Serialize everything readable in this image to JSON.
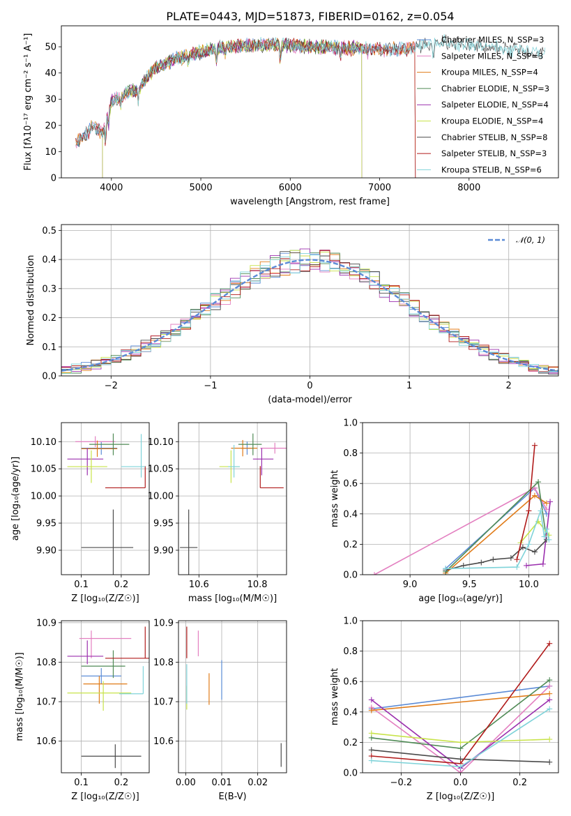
{
  "figure": {
    "title": "PLATE=0443, MJD=51873, FIBERID=0162, z=0.054"
  },
  "colors": {
    "Chabrier MILES": "#5b8bd6",
    "Salpeter MILES": "#e37fc0",
    "Kroupa MILES": "#e07b18",
    "Chabrier ELODIE": "#4f8a55",
    "Salpeter ELODIE": "#9b2fae",
    "Kroupa ELODIE": "#c8e34a",
    "Chabrier STELIB": "#4a4a4a",
    "Salpeter STELIB": "#b01a1a",
    "Kroupa STELIB": "#7fd3d9",
    "normal": "#5b8bd6"
  },
  "chart_data": [
    {
      "id": "spectrum",
      "type": "line",
      "title": "PLATE=0443, MJD=51873, FIBERID=0162, z=0.054",
      "xlabel": "wavelength [Angstrom, rest frame]",
      "ylabel": "Flux [fλ10⁻¹⁷ erg cm⁻² s⁻¹ A⁻¹]",
      "xlim": [
        3440,
        9000
      ],
      "ylim": [
        0,
        58
      ],
      "xticks": [
        "4000",
        "5000",
        "6000",
        "7000",
        "8000"
      ],
      "yticks": [
        "0",
        "10",
        "20",
        "30",
        "40",
        "50"
      ],
      "legend_position": "right",
      "legend": [
        "Chabrier MILES, N_SSP=3",
        "Salpeter MILES, N_SSP=3",
        "Kroupa MILES, N_SSP=4",
        "Chabrier ELODIE, N_SSP=3",
        "Salpeter ELODIE, N_SSP=4",
        "Kroupa ELODIE, N_SSP=4",
        "Chabrier STELIB, N_SSP=8",
        "Salpeter STELIB, N_SSP=3",
        "Kroupa STELIB, N_SSP=6"
      ],
      "continuum": {
        "x": [
          3600,
          3700,
          3800,
          3900,
          3950,
          4000,
          4100,
          4200,
          4300,
          4400,
          4500,
          4700,
          4900,
          5100,
          5300,
          5500,
          5800,
          6000,
          6300,
          6600,
          6900,
          7100,
          7300,
          7500,
          7700,
          8000,
          8300,
          8600,
          8850
        ],
        "y": [
          13,
          16,
          20,
          17,
          24,
          29,
          31,
          33,
          34,
          38,
          42,
          45,
          47,
          49,
          50,
          50.5,
          51,
          50.5,
          50,
          49.5,
          49.5,
          49,
          49,
          51,
          52,
          50.5,
          49.5,
          48.5,
          48
        ]
      },
      "model_range": {
        "Chabrier MILES": [
          3600,
          7400
        ],
        "Salpeter MILES": [
          3600,
          7400
        ],
        "Kroupa MILES": [
          3600,
          7400
        ],
        "Chabrier ELODIE": [
          3900,
          6800
        ],
        "Salpeter ELODIE": [
          3900,
          6800
        ],
        "Kroupa ELODIE": [
          3900,
          6800
        ],
        "Chabrier STELIB": [
          3600,
          8850
        ],
        "Salpeter STELIB": [
          3600,
          7400
        ],
        "Kroupa STELIB": [
          3600,
          8850
        ]
      }
    },
    {
      "id": "residuals",
      "type": "histogram",
      "xlabel": "(data-model)/error",
      "ylabel": "Normed distribution",
      "xlim": [
        -2.5,
        2.5
      ],
      "ylim": [
        0,
        0.52
      ],
      "xticks": [
        "−2",
        "−1",
        "0",
        "1",
        "2"
      ],
      "yticks": [
        "0.0",
        "0.1",
        "0.2",
        "0.3",
        "0.4",
        "0.5"
      ],
      "bins": 50,
      "normal_label": "𝒩(0, 1)",
      "legend_position": "upper right"
    },
    {
      "id": "age-vs-Z",
      "type": "errorbar",
      "xlabel": "Z [log₁₀(Z/Z☉)]",
      "ylabel": "age [log₁₀(age/yr)]",
      "xlim": [
        0.05,
        0.27
      ],
      "ylim": [
        9.855,
        10.135
      ],
      "xticks": [
        "0.1",
        "0.2"
      ],
      "yticks": [
        "9.90",
        "9.95",
        "10.00",
        "10.05",
        "10.10"
      ],
      "points": [
        {
          "model": "Chabrier MILES",
          "x": 0.15,
          "y": 10.088,
          "xerr": [
            0.05,
            0.04
          ],
          "yerr": [
            0.012,
            0.012
          ]
        },
        {
          "model": "Salpeter MILES",
          "x": 0.135,
          "y": 10.1,
          "xerr": [
            0.05,
            0.05
          ],
          "yerr": [
            0.01,
            0.01
          ]
        },
        {
          "model": "Kroupa MILES",
          "x": 0.14,
          "y": 10.087,
          "xerr": [
            0.04,
            0.05
          ],
          "yerr": [
            0.015,
            0.015
          ]
        },
        {
          "model": "Chabrier ELODIE",
          "x": 0.18,
          "y": 10.095,
          "xerr": [
            0.06,
            0.04
          ],
          "yerr": [
            0.02,
            0.02
          ]
        },
        {
          "model": "Salpeter ELODIE",
          "x": 0.115,
          "y": 10.068,
          "xerr": [
            0.05,
            0.04
          ],
          "yerr": [
            0.03,
            0.02
          ]
        },
        {
          "model": "Kroupa ELODIE",
          "x": 0.125,
          "y": 10.054,
          "xerr": [
            0.06,
            0.04
          ],
          "yerr": [
            0.03,
            0.03
          ]
        },
        {
          "model": "Chabrier STELIB",
          "x": 0.18,
          "y": 9.905,
          "xerr": [
            0.08,
            0.05
          ],
          "yerr": [
            0.055,
            0.07
          ]
        },
        {
          "model": "Salpeter STELIB",
          "x": 0.26,
          "y": 10.015,
          "xerr": [
            0.1,
            0.0
          ],
          "yerr": [
            0.0,
            0.04
          ]
        },
        {
          "model": "Kroupa STELIB",
          "x": 0.25,
          "y": 10.054,
          "xerr": [
            0.05,
            0.01
          ],
          "yerr": [
            0.02,
            0.06
          ]
        }
      ]
    },
    {
      "id": "age-vs-mass",
      "type": "errorbar",
      "xlabel": "mass [log₁₀(M/M☉)]",
      "ylabel": "",
      "xlim": [
        10.53,
        10.9
      ],
      "ylim": [
        9.855,
        10.135
      ],
      "xticks": [
        "10.6",
        "10.8"
      ],
      "yticks": [
        "9.90",
        "9.95",
        "10.00",
        "10.05",
        "10.10"
      ],
      "points": [
        {
          "model": "Chabrier MILES",
          "x": 10.765,
          "y": 10.088,
          "xerr": [
            0.02,
            0.02
          ],
          "yerr": [
            0.012,
            0.012
          ]
        },
        {
          "model": "Salpeter MILES",
          "x": 10.86,
          "y": 10.088,
          "xerr": [
            0.05,
            0.05
          ],
          "yerr": [
            0.01,
            0.01
          ]
        },
        {
          "model": "Kroupa MILES",
          "x": 10.75,
          "y": 10.088,
          "xerr": [
            0.04,
            0.05
          ],
          "yerr": [
            0.015,
            0.015
          ]
        },
        {
          "model": "Chabrier ELODIE",
          "x": 10.785,
          "y": 10.095,
          "xerr": [
            0.05,
            0.03
          ],
          "yerr": [
            0.02,
            0.02
          ]
        },
        {
          "model": "Salpeter ELODIE",
          "x": 10.815,
          "y": 10.068,
          "xerr": [
            0.03,
            0.04
          ],
          "yerr": [
            0.03,
            0.02
          ]
        },
        {
          "model": "Kroupa ELODIE",
          "x": 10.71,
          "y": 10.054,
          "xerr": [
            0.04,
            0.03
          ],
          "yerr": [
            0.03,
            0.03
          ]
        },
        {
          "model": "Chabrier STELIB",
          "x": 10.565,
          "y": 9.905,
          "xerr": [
            0.03,
            0.03
          ],
          "yerr": [
            0.06,
            0.07
          ]
        },
        {
          "model": "Salpeter STELIB",
          "x": 10.81,
          "y": 10.015,
          "xerr": [
            0.0,
            0.08
          ],
          "yerr": [
            0.0,
            0.04
          ]
        },
        {
          "model": "Kroupa STELIB",
          "x": 10.72,
          "y": 10.054,
          "xerr": [
            0.02,
            0.02
          ],
          "yerr": [
            0.02,
            0.04
          ]
        }
      ]
    },
    {
      "id": "mass-weight-vs-age",
      "type": "line",
      "xlabel": "age [log₁₀(age/yr)]",
      "ylabel": "mass weight",
      "xlim": [
        8.6,
        10.25
      ],
      "ylim": [
        0,
        1.0
      ],
      "xticks": [
        "9.0",
        "9.5",
        "10.0"
      ],
      "yticks": [
        "0.0",
        "0.2",
        "0.4",
        "0.6",
        "0.8",
        "1.0"
      ],
      "series": [
        {
          "model": "Chabrier MILES",
          "x": [
            9.3,
            10.05,
            10.15
          ],
          "y": [
            0.04,
            0.57,
            0.4
          ]
        },
        {
          "model": "Salpeter MILES",
          "x": [
            8.7,
            10.05,
            10.15
          ],
          "y": [
            0.0,
            0.57,
            0.43
          ]
        },
        {
          "model": "Kroupa MILES",
          "x": [
            9.3,
            10.05,
            10.15
          ],
          "y": [
            0.01,
            0.52,
            0.47
          ]
        },
        {
          "model": "Chabrier ELODIE",
          "x": [
            9.3,
            10.08,
            10.15
          ],
          "y": [
            0.02,
            0.61,
            0.23
          ]
        },
        {
          "model": "Salpeter ELODIE",
          "x": [
            9.98,
            10.12,
            10.18
          ],
          "y": [
            0.06,
            0.07,
            0.48
          ]
        },
        {
          "model": "Kroupa ELODIE",
          "x": [
            9.93,
            10.08,
            10.17
          ],
          "y": [
            0.21,
            0.35,
            0.26
          ]
        },
        {
          "model": "Chabrier STELIB",
          "x": [
            9.3,
            9.45,
            9.6,
            9.7,
            9.85,
            9.95,
            10.05,
            10.15
          ],
          "y": [
            0.03,
            0.06,
            0.08,
            0.1,
            0.11,
            0.18,
            0.15,
            0.23
          ]
        },
        {
          "model": "Salpeter STELIB",
          "x": [
            9.9,
            10.0,
            10.05
          ],
          "y": [
            0.1,
            0.42,
            0.85
          ]
        },
        {
          "model": "Kroupa STELIB",
          "x": [
            9.3,
            9.9,
            10.0,
            10.1,
            10.13,
            10.15,
            10.17
          ],
          "y": [
            0.04,
            0.05,
            0.2,
            0.42,
            0.25,
            0.3,
            0.23
          ]
        }
      ]
    },
    {
      "id": "mass-vs-Z",
      "type": "errorbar",
      "xlabel": "Z [log₁₀(Z/Z☉)]",
      "ylabel": "mass [log₁₀(M/M☉)]",
      "xlim": [
        0.05,
        0.27
      ],
      "ylim": [
        10.52,
        10.905
      ],
      "xticks": [
        "0.1",
        "0.2"
      ],
      "yticks": [
        "10.6",
        "10.7",
        "10.8",
        "10.9"
      ],
      "points": [
        {
          "model": "Chabrier MILES",
          "x": 0.15,
          "y": 10.765,
          "xerr": [
            0.05,
            0.05
          ],
          "yerr": [
            0.02,
            0.02
          ]
        },
        {
          "model": "Salpeter MILES",
          "x": 0.125,
          "y": 10.86,
          "xerr": [
            0.03,
            0.1
          ],
          "yerr": [
            0.05,
            0.02
          ]
        },
        {
          "model": "Kroupa MILES",
          "x": 0.145,
          "y": 10.745,
          "xerr": [
            0.04,
            0.07
          ],
          "yerr": [
            0.05,
            0.02
          ]
        },
        {
          "model": "Chabrier ELODIE",
          "x": 0.18,
          "y": 10.79,
          "xerr": [
            0.08,
            0.03
          ],
          "yerr": [
            0.03,
            0.04
          ]
        },
        {
          "model": "Salpeter ELODIE",
          "x": 0.115,
          "y": 10.815,
          "xerr": [
            0.05,
            0.04
          ],
          "yerr": [
            0.02,
            0.04
          ]
        },
        {
          "model": "Kroupa ELODIE",
          "x": 0.155,
          "y": 10.722,
          "xerr": [
            0.09,
            0.07
          ],
          "yerr": [
            0.045,
            0.03
          ]
        },
        {
          "model": "Chabrier STELIB",
          "x": 0.185,
          "y": 10.562,
          "xerr": [
            0.085,
            0.065
          ],
          "yerr": [
            0.03,
            0.03
          ]
        },
        {
          "model": "Salpeter STELIB",
          "x": 0.26,
          "y": 10.81,
          "xerr": [
            0.1,
            0.01
          ],
          "yerr": [
            0.0,
            0.08
          ]
        },
        {
          "model": "Kroupa STELIB",
          "x": 0.255,
          "y": 10.72,
          "xerr": [
            0.06,
            0.0
          ],
          "yerr": [
            0.0,
            0.07
          ]
        }
      ]
    },
    {
      "id": "mass-vs-EBV",
      "type": "errorbar",
      "xlabel": "E(B-V)",
      "ylabel": "",
      "xlim": [
        -0.002,
        0.028
      ],
      "ylim": [
        10.52,
        10.905
      ],
      "xticks": [
        "0.00",
        "0.01",
        "0.02"
      ],
      "yticks": [
        "10.6",
        "10.7",
        "10.8",
        "10.9"
      ],
      "points": [
        {
          "model": "Salpeter MILES",
          "x": 0.0035,
          "y": 10.845,
          "xerr": [
            0,
            0
          ],
          "yerr": [
            0.03,
            0.035
          ]
        },
        {
          "model": "Chabrier MILES",
          "x": 0.01,
          "y": 10.755,
          "xerr": [
            0,
            0
          ],
          "yerr": [
            0.05,
            0.05
          ]
        },
        {
          "model": "Kroupa MILES",
          "x": 0.0065,
          "y": 10.732,
          "xerr": [
            0,
            0
          ],
          "yerr": [
            0.04,
            0.04
          ]
        },
        {
          "model": "Salpeter STELIB",
          "x": 0.0003,
          "y": 10.85,
          "xerr": [
            0,
            0
          ],
          "yerr": [
            0.04,
            0.04
          ]
        },
        {
          "model": "Kroupa ELODIE",
          "x": 0.0003,
          "y": 10.72,
          "xerr": [
            0,
            0
          ],
          "yerr": [
            0.04,
            0.02
          ]
        },
        {
          "model": "Kroupa STELIB",
          "x": 0.0003,
          "y": 10.745,
          "xerr": [
            0,
            0
          ],
          "yerr": [
            0.05,
            0.05
          ]
        },
        {
          "model": "Chabrier STELIB",
          "x": 0.0265,
          "y": 10.565,
          "xerr": [
            0,
            0
          ],
          "yerr": [
            0.03,
            0.03
          ]
        }
      ]
    },
    {
      "id": "mass-weight-vs-Z",
      "type": "line",
      "xlabel": "Z [log₁₀(Z/Z☉)]",
      "ylabel": "mass weight",
      "xlim": [
        -0.33,
        0.33
      ],
      "ylim": [
        0,
        1.0
      ],
      "xticks": [
        "−0.2",
        "0.0",
        "0.2"
      ],
      "yticks": [
        "0.0",
        "0.2",
        "0.4",
        "0.6",
        "0.8",
        "1.0"
      ],
      "series": [
        {
          "model": "Chabrier MILES",
          "x": [
            -0.3,
            0.3
          ],
          "y": [
            0.42,
            0.57
          ]
        },
        {
          "model": "Salpeter MILES",
          "x": [
            -0.3,
            0.0,
            0.3
          ],
          "y": [
            0.43,
            0.0,
            0.57
          ]
        },
        {
          "model": "Kroupa MILES",
          "x": [
            -0.3,
            0.3
          ],
          "y": [
            0.41,
            0.52
          ]
        },
        {
          "model": "Chabrier ELODIE",
          "x": [
            -0.3,
            0.0,
            0.3
          ],
          "y": [
            0.23,
            0.16,
            0.61
          ]
        },
        {
          "model": "Salpeter ELODIE",
          "x": [
            -0.3,
            0.0,
            0.3
          ],
          "y": [
            0.48,
            0.03,
            0.48
          ]
        },
        {
          "model": "Kroupa ELODIE",
          "x": [
            -0.3,
            0.0,
            0.3
          ],
          "y": [
            0.26,
            0.2,
            0.22
          ]
        },
        {
          "model": "Chabrier STELIB",
          "x": [
            -0.3,
            0.0,
            0.3
          ],
          "y": [
            0.15,
            0.09,
            0.07
          ]
        },
        {
          "model": "Salpeter STELIB",
          "x": [
            -0.3,
            0.0,
            0.3
          ],
          "y": [
            0.11,
            0.06,
            0.85
          ]
        },
        {
          "model": "Kroupa STELIB",
          "x": [
            -0.3,
            0.0,
            0.3
          ],
          "y": [
            0.08,
            0.04,
            0.42
          ]
        }
      ]
    }
  ]
}
